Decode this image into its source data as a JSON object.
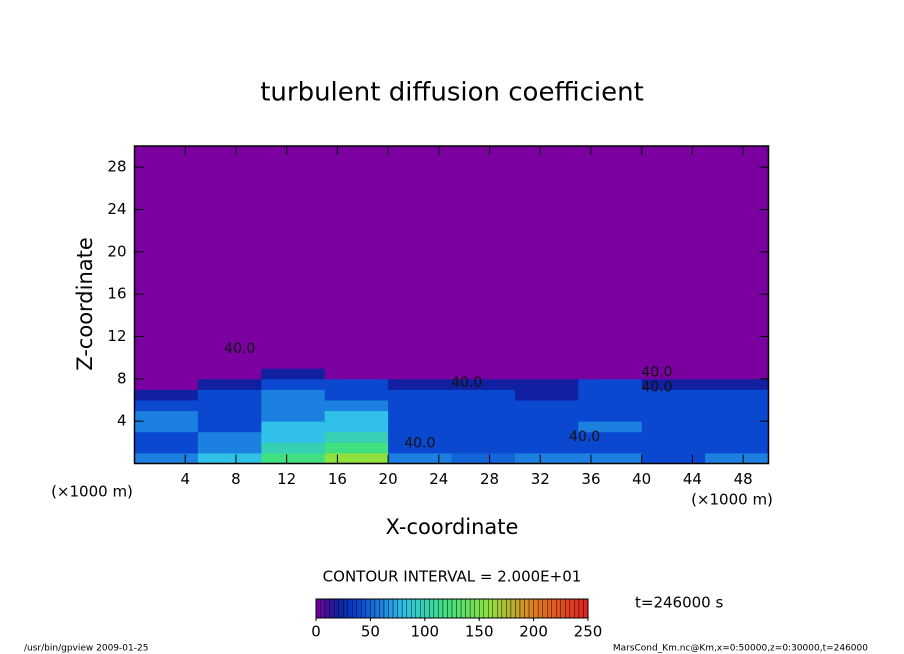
{
  "chart_data": {
    "type": "heatmap",
    "title": "turbulent diffusion coefficient",
    "x_label": "X-coordinate",
    "y_label": "Z-coordinate",
    "x_unit": "(×1000 m)",
    "x_unit_right": "(×1000 m)",
    "x_edges": [
      0,
      5,
      10,
      15,
      20,
      25,
      30,
      35,
      40,
      45,
      50
    ],
    "y_edges": [
      0,
      1,
      2,
      3,
      4,
      5,
      6,
      7,
      8,
      9,
      30
    ],
    "values": [
      [
        60,
        80,
        120,
        160,
        60,
        50,
        60,
        60,
        40,
        60
      ],
      [
        40,
        60,
        100,
        120,
        40,
        40,
        40,
        40,
        40,
        40
      ],
      [
        40,
        60,
        80,
        100,
        40,
        40,
        40,
        40,
        40,
        40
      ],
      [
        60,
        40,
        80,
        80,
        40,
        40,
        40,
        60,
        40,
        40
      ],
      [
        60,
        40,
        60,
        80,
        40,
        40,
        40,
        40,
        40,
        40
      ],
      [
        40,
        40,
        60,
        60,
        40,
        40,
        40,
        40,
        40,
        40
      ],
      [
        20,
        40,
        60,
        40,
        40,
        40,
        20,
        40,
        40,
        40
      ],
      [
        0,
        20,
        40,
        40,
        20,
        20,
        20,
        40,
        20,
        20
      ],
      [
        0,
        0,
        20,
        0,
        0,
        0,
        0,
        0,
        0,
        0
      ],
      [
        0,
        0,
        0,
        0,
        0,
        0,
        0,
        0,
        0,
        0
      ]
    ],
    "xlim": [
      0,
      50
    ],
    "ylim": [
      0,
      30
    ],
    "xticks": [
      4,
      8,
      12,
      16,
      20,
      24,
      28,
      32,
      36,
      40,
      44,
      48
    ],
    "yticks": [
      4,
      8,
      12,
      16,
      20,
      24,
      28
    ],
    "contour_labels": [
      {
        "value": 40,
        "label": "40.0",
        "x": 8.3,
        "z": 10.8
      },
      {
        "value": 40,
        "label": "40.0",
        "x": 26.2,
        "z": 7.6
      },
      {
        "value": 40,
        "label": "40.0",
        "x": 22.5,
        "z": 1.9
      },
      {
        "value": 40,
        "label": "40.0",
        "x": 35.5,
        "z": 2.5
      },
      {
        "value": 40,
        "label": "40.0",
        "x": 41.2,
        "z": 8.6
      },
      {
        "value": 40,
        "label": "40.0",
        "x": 41.2,
        "z": 7.2
      }
    ],
    "contour_interval": "CONTOUR INTERVAL = 2.000E+01",
    "time_label": "t=246000 s",
    "colormap": [
      {
        "value": 0,
        "color": "#7b00a0"
      },
      {
        "value": 20,
        "color": "#1020a0"
      },
      {
        "value": 40,
        "color": "#0a48d0"
      },
      {
        "value": 60,
        "color": "#1c80e0"
      },
      {
        "value": 80,
        "color": "#30c0e8"
      },
      {
        "value": 120,
        "color": "#40e080"
      },
      {
        "value": 160,
        "color": "#90e040"
      },
      {
        "value": 200,
        "color": "#e08020"
      },
      {
        "value": 250,
        "color": "#e02020"
      }
    ],
    "colorbar_lim": [
      0,
      250
    ],
    "colorbar_ticks": [
      0,
      50,
      100,
      150,
      200,
      250
    ],
    "footer_left": "/usr/bin/gpview  2009-01-25",
    "footer_right": "MarsCond_Km.nc@Km,x=0:50000,z=0:30000,t=246000"
  }
}
